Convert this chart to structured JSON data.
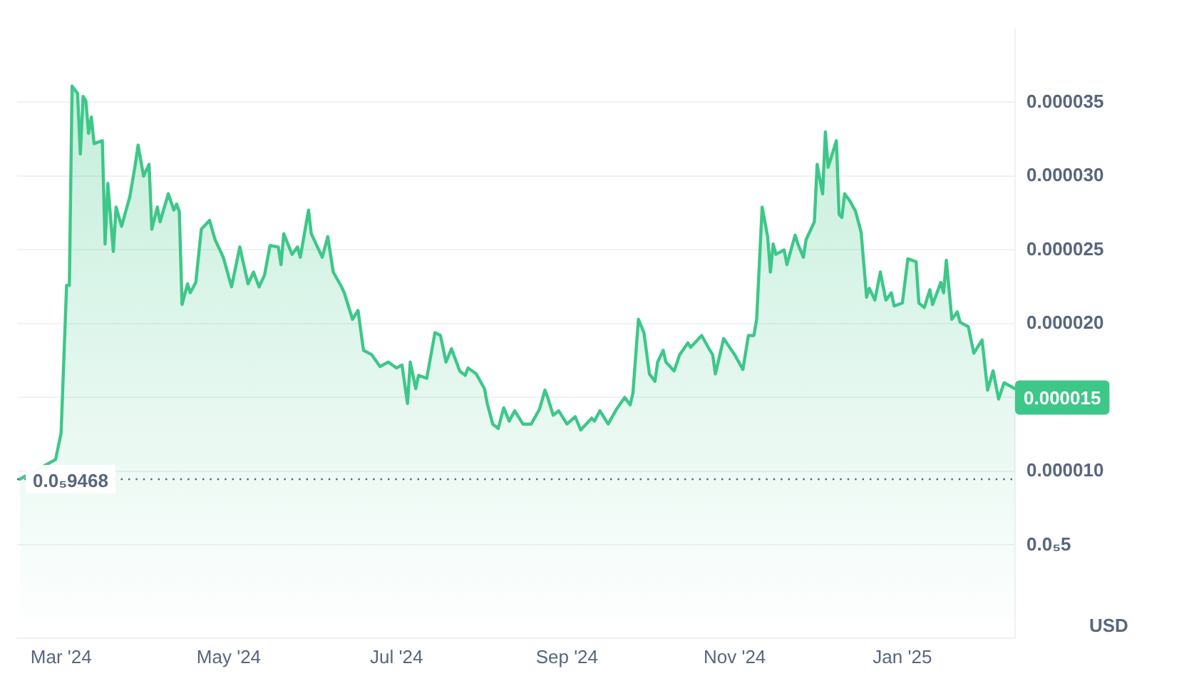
{
  "chart_data": {
    "type": "area",
    "ylabel": "USD",
    "x": [
      "2024-02-15",
      "2024-02-28",
      "2024-03-01",
      "2024-03-03",
      "2024-03-04",
      "2024-03-05",
      "2024-03-07",
      "2024-03-08",
      "2024-03-09",
      "2024-03-10",
      "2024-03-11",
      "2024-03-12",
      "2024-03-13",
      "2024-03-16",
      "2024-03-17",
      "2024-03-18",
      "2024-03-20",
      "2024-03-21",
      "2024-03-23",
      "2024-03-26",
      "2024-03-28",
      "2024-03-29",
      "2024-03-31",
      "2024-04-02",
      "2024-04-03",
      "2024-04-05",
      "2024-04-06",
      "2024-04-09",
      "2024-04-11",
      "2024-04-12",
      "2024-04-13",
      "2024-04-14",
      "2024-04-16",
      "2024-04-17",
      "2024-04-19",
      "2024-04-21",
      "2024-04-24",
      "2024-04-26",
      "2024-04-29",
      "2024-05-02",
      "2024-05-05",
      "2024-05-08",
      "2024-05-10",
      "2024-05-12",
      "2024-05-14",
      "2024-05-16",
      "2024-05-19",
      "2024-05-20",
      "2024-05-21",
      "2024-05-24",
      "2024-05-26",
      "2024-05-27",
      "2024-05-30",
      "2024-05-31",
      "2024-06-04",
      "2024-06-06",
      "2024-06-08",
      "2024-06-11",
      "2024-06-12",
      "2024-06-15",
      "2024-06-17",
      "2024-06-19",
      "2024-06-22",
      "2024-06-25",
      "2024-06-28",
      "2024-07-01",
      "2024-07-03",
      "2024-07-05",
      "2024-07-06",
      "2024-07-08",
      "2024-07-09",
      "2024-07-12",
      "2024-07-15",
      "2024-07-17",
      "2024-07-19",
      "2024-07-21",
      "2024-07-24",
      "2024-07-26",
      "2024-07-27",
      "2024-07-30",
      "2024-08-02",
      "2024-08-03",
      "2024-08-05",
      "2024-08-07",
      "2024-08-09",
      "2024-08-11",
      "2024-08-13",
      "2024-08-16",
      "2024-08-19",
      "2024-08-22",
      "2024-08-24",
      "2024-08-25",
      "2024-08-27",
      "2024-08-29",
      "2024-09-01",
      "2024-09-04",
      "2024-09-06",
      "2024-09-10",
      "2024-09-11",
      "2024-09-13",
      "2024-09-16",
      "2024-09-19",
      "2024-09-22",
      "2024-09-24",
      "2024-09-25",
      "2024-09-27",
      "2024-09-29",
      "2024-10-01",
      "2024-10-03",
      "2024-10-04",
      "2024-10-06",
      "2024-10-07",
      "2024-10-10",
      "2024-10-12",
      "2024-10-15",
      "2024-10-16",
      "2024-10-20",
      "2024-10-23",
      "2024-10-24",
      "2024-10-25",
      "2024-10-28",
      "2024-11-01",
      "2024-11-04",
      "2024-11-06",
      "2024-11-08",
      "2024-11-09",
      "2024-11-11",
      "2024-11-13",
      "2024-11-14",
      "2024-11-15",
      "2024-11-16",
      "2024-11-19",
      "2024-11-20",
      "2024-11-23",
      "2024-11-24",
      "2024-11-26",
      "2024-11-27",
      "2024-11-30",
      "2024-12-01",
      "2024-12-03",
      "2024-12-04",
      "2024-12-05",
      "2024-12-08",
      "2024-12-09",
      "2024-12-10",
      "2024-12-11",
      "2024-12-13",
      "2024-12-15",
      "2024-12-17",
      "2024-12-19",
      "2024-12-20",
      "2024-12-22",
      "2024-12-24",
      "2024-12-26",
      "2024-12-28",
      "2024-12-29",
      "2025-01-01",
      "2025-01-03",
      "2025-01-06",
      "2025-01-07",
      "2025-01-09",
      "2025-01-11",
      "2025-01-12",
      "2025-01-15",
      "2025-01-16",
      "2025-01-17",
      "2025-01-19",
      "2025-01-21",
      "2025-01-22",
      "2025-01-25",
      "2025-01-27",
      "2025-01-30",
      "2025-02-01",
      "2025-02-03",
      "2025-02-05",
      "2025-02-07",
      "2025-02-11"
    ],
    "series": [
      {
        "color": "#3dc789",
        "values": [
          9.47e-06,
          1.08e-05,
          1.26e-05,
          2.26e-05,
          2.26e-05,
          3.61e-05,
          3.56e-05,
          3.15e-05,
          3.54e-05,
          3.51e-05,
          3.29e-05,
          3.4e-05,
          3.22e-05,
          3.24e-05,
          2.54e-05,
          2.95e-05,
          2.49e-05,
          2.79e-05,
          2.66e-05,
          2.86e-05,
          3.08e-05,
          3.21e-05,
          3e-05,
          3.08e-05,
          2.64e-05,
          2.79e-05,
          2.69e-05,
          2.88e-05,
          2.77e-05,
          2.81e-05,
          2.76e-05,
          2.13e-05,
          2.27e-05,
          2.21e-05,
          2.28e-05,
          2.64e-05,
          2.7e-05,
          2.57e-05,
          2.45e-05,
          2.25e-05,
          2.52e-05,
          2.27e-05,
          2.35e-05,
          2.25e-05,
          2.33e-05,
          2.53e-05,
          2.52e-05,
          2.4e-05,
          2.61e-05,
          2.47e-05,
          2.52e-05,
          2.45e-05,
          2.77e-05,
          2.61e-05,
          2.45e-05,
          2.59e-05,
          2.35e-05,
          2.25e-05,
          2.21e-05,
          2.03e-05,
          2.09e-05,
          1.82e-05,
          1.79e-05,
          1.71e-05,
          1.74e-05,
          1.7e-05,
          1.72e-05,
          1.46e-05,
          1.74e-05,
          1.56e-05,
          1.65e-05,
          1.63e-05,
          1.94e-05,
          1.92e-05,
          1.74e-05,
          1.83e-05,
          1.68e-05,
          1.65e-05,
          1.7e-05,
          1.66e-05,
          1.56e-05,
          1.46e-05,
          1.32e-05,
          1.29e-05,
          1.43e-05,
          1.34e-05,
          1.41e-05,
          1.32e-05,
          1.32e-05,
          1.42e-05,
          1.55e-05,
          1.5e-05,
          1.38e-05,
          1.41e-05,
          1.32e-05,
          1.37e-05,
          1.28e-05,
          1.36e-05,
          1.34e-05,
          1.41e-05,
          1.32e-05,
          1.42e-05,
          1.5e-05,
          1.45e-05,
          1.53e-05,
          2.03e-05,
          1.94e-05,
          1.66e-05,
          1.61e-05,
          1.74e-05,
          1.82e-05,
          1.74e-05,
          1.68e-05,
          1.79e-05,
          1.87e-05,
          1.84e-05,
          1.92e-05,
          1.82e-05,
          1.79e-05,
          1.66e-05,
          1.9e-05,
          1.79e-05,
          1.69e-05,
          1.92e-05,
          1.92e-05,
          2.03e-05,
          2.79e-05,
          2.59e-05,
          2.35e-05,
          2.54e-05,
          2.47e-05,
          2.5e-05,
          2.4e-05,
          2.6e-05,
          2.54e-05,
          2.45e-05,
          2.57e-05,
          2.69e-05,
          3.08e-05,
          2.88e-05,
          3.3e-05,
          3.06e-05,
          3.24e-05,
          2.74e-05,
          2.72e-05,
          2.88e-05,
          2.83e-05,
          2.76e-05,
          2.62e-05,
          2.18e-05,
          2.24e-05,
          2.16e-05,
          2.35e-05,
          2.16e-05,
          2.21e-05,
          2.12e-05,
          2.14e-05,
          2.44e-05,
          2.42e-05,
          2.14e-05,
          2.11e-05,
          2.23e-05,
          2.13e-05,
          2.28e-05,
          2.21e-05,
          2.43e-05,
          2.03e-05,
          2.08e-05,
          2.01e-05,
          1.98e-05,
          1.8e-05,
          1.89e-05,
          1.55e-05,
          1.68e-05,
          1.49e-05,
          1.6e-05,
          1.56e-05
        ]
      }
    ],
    "xlim": [
      "2024-02-14",
      "2025-02-11"
    ],
    "xticks": [
      {
        "value": "2024-03-01",
        "label": "Mar '24"
      },
      {
        "value": "2024-05-01",
        "label": "May '24"
      },
      {
        "value": "2024-07-01",
        "label": "Jul '24"
      },
      {
        "value": "2024-09-01",
        "label": "Sep '24"
      },
      {
        "value": "2024-11-01",
        "label": "Nov '24"
      },
      {
        "value": "2025-01-01",
        "label": "Jan '25"
      }
    ],
    "ylim": [
      -1.3e-06,
      4e-05
    ],
    "yticks": [
      {
        "value": 5e-06,
        "label": "0.0₅5"
      },
      {
        "value": 1e-05,
        "label": "0.000010"
      },
      {
        "value": 1.5e-05,
        "label": null
      },
      {
        "value": 2e-05,
        "label": "0.000020"
      },
      {
        "value": 2.5e-05,
        "label": "0.000025"
      },
      {
        "value": 3e-05,
        "label": "0.000030"
      },
      {
        "value": 3.5e-05,
        "label": "0.000035"
      }
    ],
    "ref_lines": [
      {
        "axis": "y",
        "value": 9.468e-06,
        "label": "0.0₅9468",
        "color": "#58667e",
        "line_style": "dotted"
      }
    ],
    "annotations": [
      {
        "text": "0.000015",
        "x": "2025-02-11",
        "y": 1.5e-05
      }
    ],
    "grid": "y",
    "legend": false,
    "marker": "none",
    "line_style": "solid"
  }
}
